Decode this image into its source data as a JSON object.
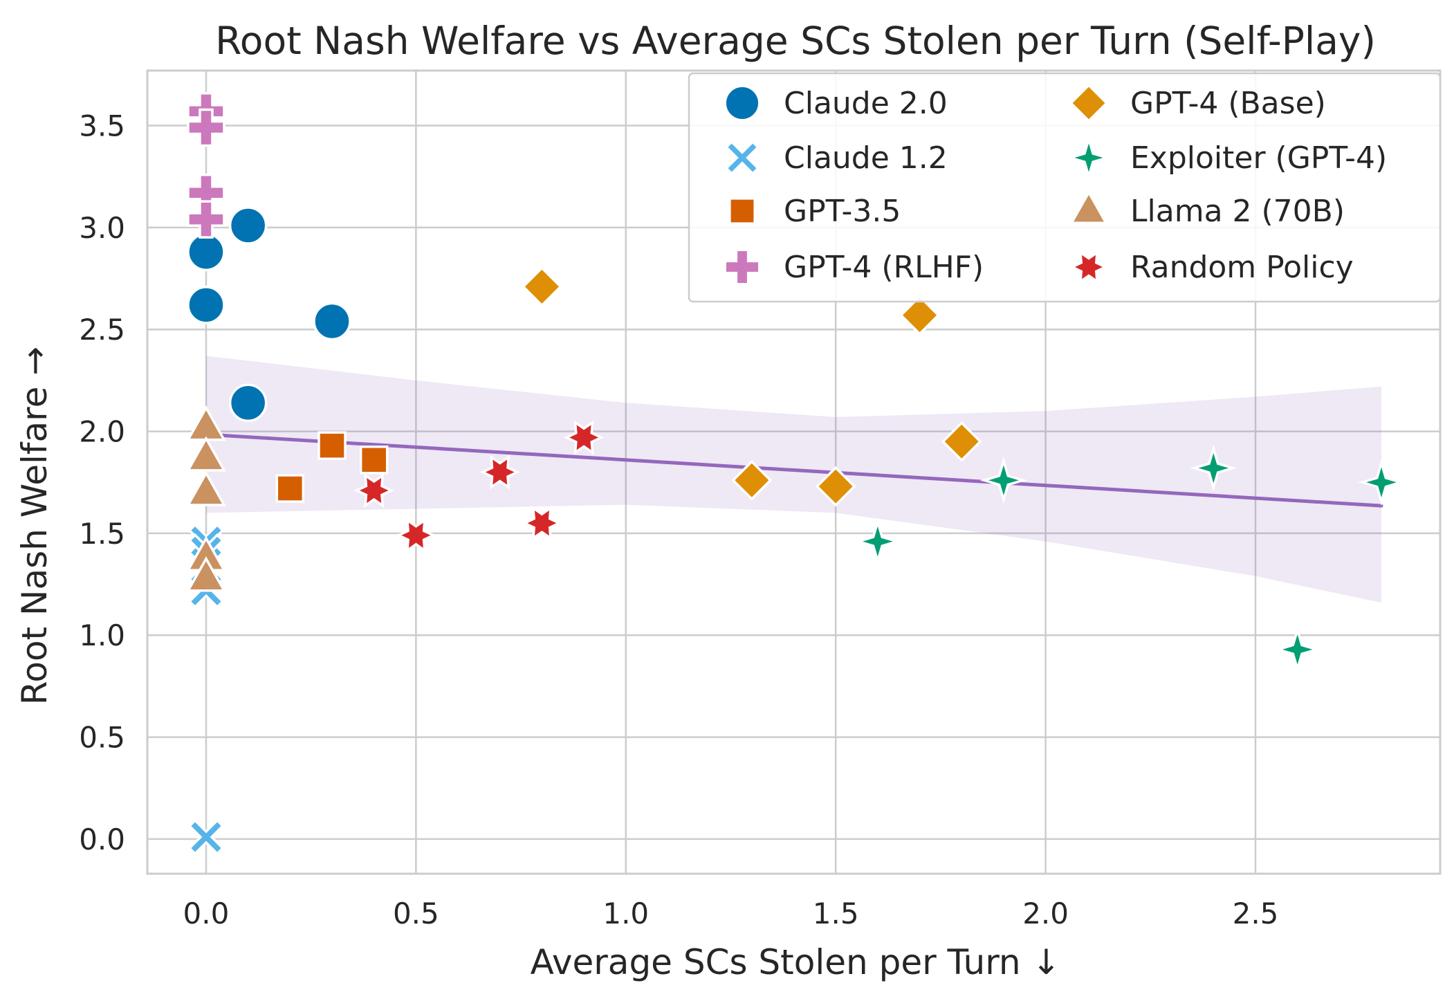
{
  "chart_data": {
    "type": "scatter",
    "title": "Root Nash Welfare vs Average SCs Stolen per Turn (Self-Play)",
    "xlabel": "Average SCs Stolen per Turn ↓",
    "ylabel": "Root Nash Welfare →",
    "xlim": [
      -0.14,
      2.94
    ],
    "ylim": [
      -0.17,
      3.77
    ],
    "xticks": [
      0.0,
      0.5,
      1.0,
      1.5,
      2.0,
      2.5
    ],
    "xtick_labels": [
      "0.0",
      "0.5",
      "1.0",
      "1.5",
      "2.0",
      "2.5"
    ],
    "yticks": [
      0.0,
      0.5,
      1.0,
      1.5,
      2.0,
      2.5,
      3.0,
      3.5
    ],
    "ytick_labels": [
      "0.0",
      "0.5",
      "1.0",
      "1.5",
      "2.0",
      "2.5",
      "3.0",
      "3.5"
    ],
    "grid": true,
    "legend_position": "top-right",
    "series": [
      {
        "name": "Claude 2.0",
        "marker": "circle",
        "color": "#0173b2",
        "points": [
          [
            0.0,
            2.88
          ],
          [
            0.0,
            2.62
          ],
          [
            0.1,
            3.01
          ],
          [
            0.3,
            2.54
          ],
          [
            0.1,
            2.14
          ]
        ]
      },
      {
        "name": "Claude 1.2",
        "marker": "x",
        "color": "#56b4e9",
        "points": [
          [
            0.0,
            1.46
          ],
          [
            0.0,
            1.41
          ],
          [
            0.0,
            1.22
          ],
          [
            0.0,
            0.01
          ]
        ]
      },
      {
        "name": "GPT-3.5",
        "marker": "square",
        "color": "#d55e00",
        "points": [
          [
            0.2,
            1.72
          ],
          [
            0.3,
            1.93
          ],
          [
            0.4,
            1.86
          ]
        ]
      },
      {
        "name": "GPT-4 (RLHF)",
        "marker": "plus",
        "color": "#cc78bc",
        "points": [
          [
            0.0,
            3.57
          ],
          [
            0.0,
            3.49
          ],
          [
            0.0,
            3.17
          ],
          [
            0.0,
            3.04
          ]
        ]
      },
      {
        "name": "GPT-4 (Base)",
        "marker": "diamond",
        "color": "#de8f05",
        "points": [
          [
            0.8,
            2.71
          ],
          [
            1.7,
            2.57
          ],
          [
            1.8,
            1.95
          ],
          [
            1.3,
            1.76
          ],
          [
            1.5,
            1.73
          ]
        ]
      },
      {
        "name": "Exploiter (GPT-4)",
        "marker": "star4",
        "color": "#029e73",
        "points": [
          [
            1.6,
            1.46
          ],
          [
            1.9,
            1.76
          ],
          [
            2.4,
            1.82
          ],
          [
            2.8,
            1.75
          ],
          [
            2.6,
            0.93
          ]
        ]
      },
      {
        "name": "Llama 2 (70B)",
        "marker": "triangle",
        "color": "#ca9161",
        "points": [
          [
            0.0,
            2.02
          ],
          [
            0.0,
            1.87
          ],
          [
            0.0,
            1.7
          ],
          [
            0.0,
            1.38
          ],
          [
            0.0,
            1.28
          ]
        ]
      },
      {
        "name": "Random Policy",
        "marker": "hexstar",
        "color": "#d62728",
        "points": [
          [
            0.4,
            1.71
          ],
          [
            0.5,
            1.49
          ],
          [
            0.7,
            1.8
          ],
          [
            0.8,
            1.55
          ],
          [
            0.9,
            1.97
          ]
        ]
      }
    ],
    "regression": {
      "color": "#9467bd",
      "line": [
        [
          0.0,
          1.985
        ],
        [
          2.8,
          1.635
        ]
      ],
      "confidence_band": {
        "x": [
          0.0,
          0.5,
          1.0,
          1.5,
          2.0,
          2.5,
          2.8
        ],
        "lower": [
          1.6,
          1.62,
          1.64,
          1.6,
          1.46,
          1.29,
          1.16
        ],
        "upper": [
          2.37,
          2.25,
          2.14,
          2.07,
          2.1,
          2.17,
          2.22
        ]
      }
    }
  }
}
